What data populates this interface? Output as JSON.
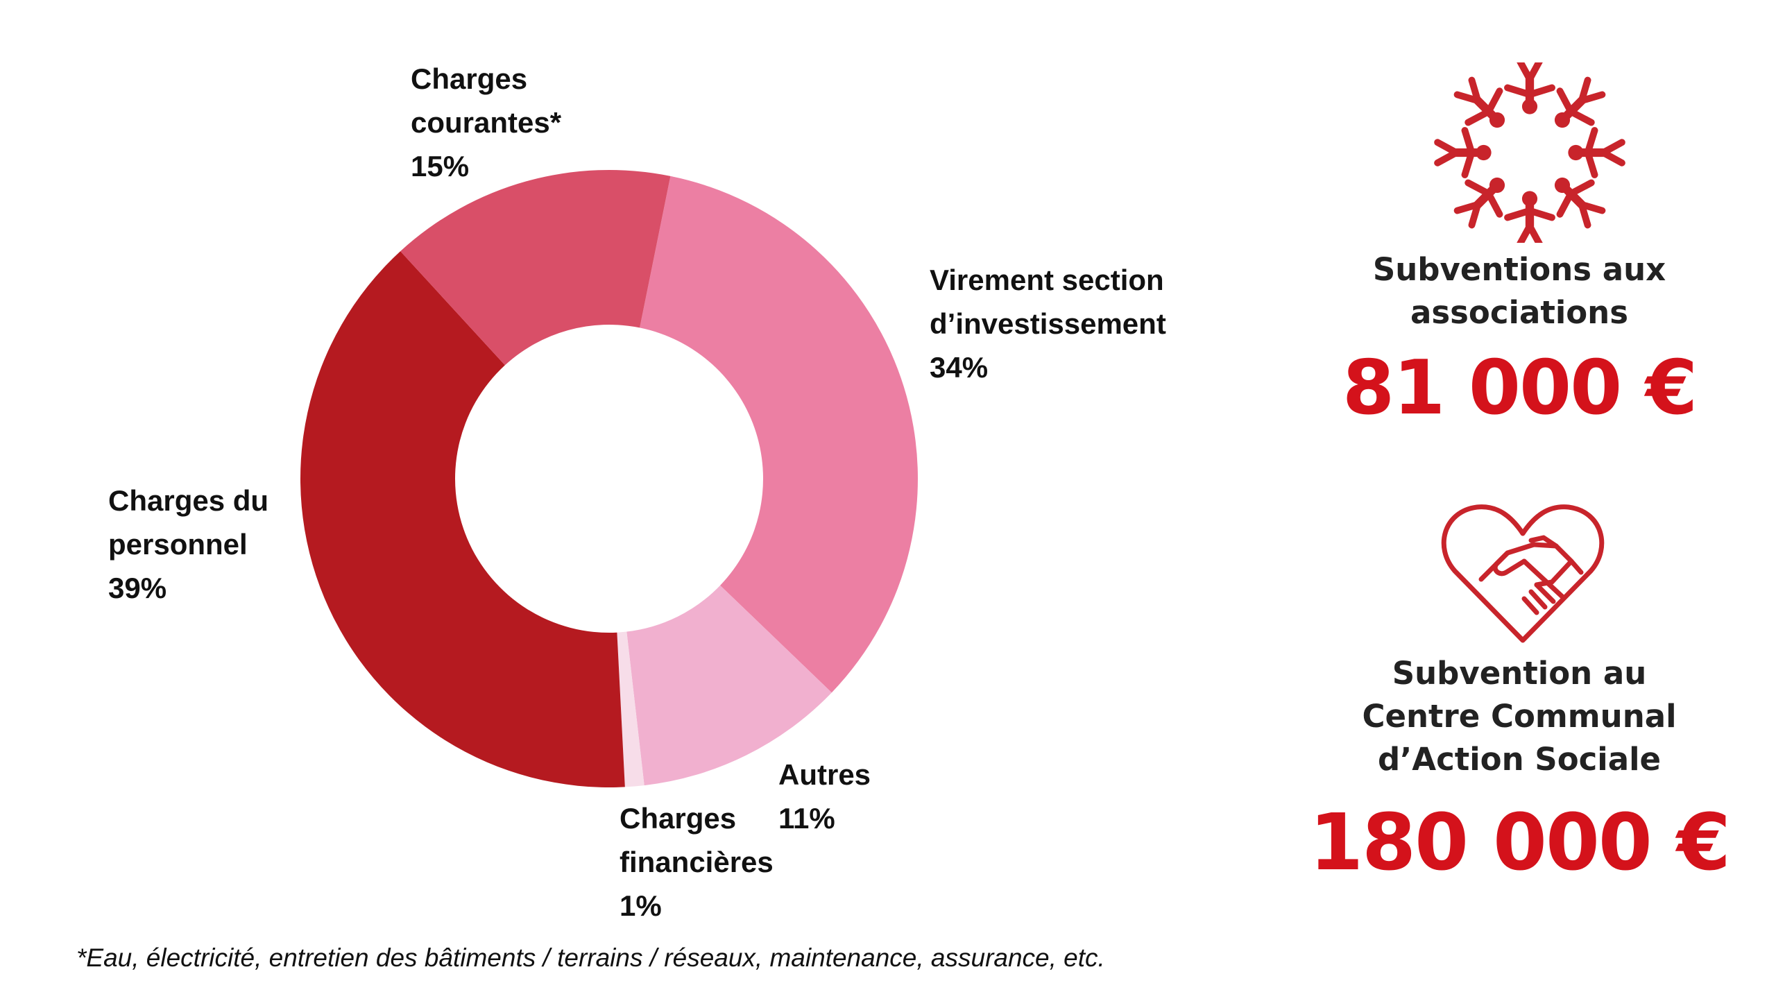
{
  "chart_data": {
    "type": "pie",
    "slices": [
      {
        "label_lines": [
          "Virement section",
          "d’investissement"
        ],
        "value": 34,
        "value_label": "34%",
        "color": "#ec7fa3"
      },
      {
        "label_lines": [
          "Autres"
        ],
        "value": 11,
        "value_label": "11%",
        "color": "#f1b0cf"
      },
      {
        "label_lines": [
          "Charges",
          "financières"
        ],
        "value": 1,
        "value_label": "1%",
        "color": "#f7dde9"
      },
      {
        "label_lines": [
          "Charges du",
          "personnel"
        ],
        "value": 39,
        "value_label": "39%",
        "color": "#b51a20"
      },
      {
        "label_lines": [
          "Charges",
          "courantes*"
        ],
        "value": 15,
        "value_label": "15%",
        "color": "#d94f68"
      }
    ]
  },
  "footnote": "*Eau, électricité, entretien des bâtiments / terrains / réseaux, maintenance, assurance, etc.",
  "stats": [
    {
      "title_lines": [
        "Subventions aux",
        "associations"
      ],
      "amount": "81 000 €",
      "icon": "people-circle-icon"
    },
    {
      "title_lines": [
        "Subvention au",
        "Centre Communal",
        "d’Action Sociale"
      ],
      "amount": "180 000 €",
      "icon": "heart-handshake-icon"
    }
  ],
  "colors": {
    "accent": "#d4121b",
    "icon": "#c8242b"
  }
}
